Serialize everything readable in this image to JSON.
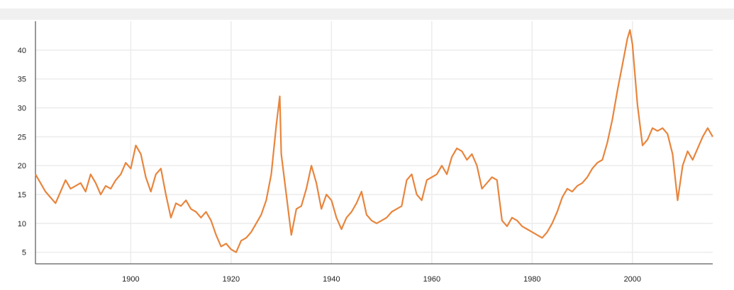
{
  "chart_data": {
    "type": "line",
    "title": "",
    "xlabel": "",
    "ylabel": "",
    "xlim": [
      1881,
      2016
    ],
    "ylim": [
      3,
      45
    ],
    "x_ticks": [
      1900,
      1920,
      1940,
      1960,
      1980,
      2000
    ],
    "y_ticks": [
      5,
      10,
      15,
      20,
      25,
      30,
      35,
      40
    ],
    "grid": true,
    "legend": "none",
    "color": "#e8853d",
    "series": [
      {
        "x": [
          1881,
          1882,
          1883,
          1884,
          1885,
          1886,
          1887,
          1888,
          1889,
          1890,
          1891,
          1892,
          1893,
          1894,
          1895,
          1896,
          1897,
          1898,
          1899,
          1900,
          1901,
          1902,
          1903,
          1904,
          1905,
          1906,
          1907,
          1908,
          1909,
          1910,
          1911,
          1912,
          1913,
          1914,
          1915,
          1916,
          1917,
          1918,
          1919,
          1920,
          1921,
          1922,
          1923,
          1924,
          1925,
          1926,
          1927,
          1928,
          1929,
          1929.7,
          1930,
          1931,
          1932,
          1933,
          1934,
          1935,
          1936,
          1937,
          1938,
          1939,
          1940,
          1941,
          1942,
          1943,
          1944,
          1945,
          1946,
          1947,
          1948,
          1949,
          1950,
          1951,
          1952,
          1953,
          1954,
          1955,
          1956,
          1957,
          1958,
          1959,
          1960,
          1961,
          1962,
          1963,
          1964,
          1965,
          1966,
          1967,
          1968,
          1969,
          1970,
          1971,
          1972,
          1973,
          1974,
          1975,
          1976,
          1977,
          1978,
          1979,
          1980,
          1981,
          1982,
          1983,
          1984,
          1985,
          1986,
          1987,
          1988,
          1989,
          1990,
          1991,
          1992,
          1993,
          1994,
          1995,
          1996,
          1997,
          1998,
          1999,
          1999.5,
          2000,
          2001,
          2002,
          2003,
          2004,
          2005,
          2006,
          2007,
          2008,
          2009,
          2010,
          2011,
          2012,
          2013,
          2014,
          2015,
          2016
        ],
        "values": [
          18.5,
          17.0,
          15.5,
          14.5,
          13.5,
          15.5,
          17.5,
          16.0,
          16.5,
          17.0,
          15.5,
          18.5,
          17.0,
          15.0,
          16.5,
          16.0,
          17.5,
          18.5,
          20.5,
          19.5,
          23.5,
          22.0,
          18.0,
          15.5,
          18.5,
          19.5,
          15.0,
          11.0,
          13.5,
          13.0,
          14.0,
          12.5,
          12.0,
          11.0,
          12.0,
          10.5,
          8.0,
          6.0,
          6.5,
          5.5,
          5.0,
          7.0,
          7.5,
          8.5,
          10.0,
          11.5,
          14.0,
          18.5,
          27.0,
          32.0,
          22.0,
          15.0,
          8.0,
          12.5,
          13.0,
          16.0,
          20.0,
          17.0,
          12.5,
          15.0,
          14.0,
          11.0,
          9.0,
          11.0,
          12.0,
          13.5,
          15.5,
          11.5,
          10.5,
          10.0,
          10.5,
          11.0,
          12.0,
          12.5,
          13.0,
          17.5,
          18.5,
          15.0,
          14.0,
          17.5,
          18.0,
          18.5,
          20.0,
          18.5,
          21.5,
          23.0,
          22.5,
          21.0,
          22.0,
          20.0,
          16.0,
          17.0,
          18.0,
          17.5,
          10.5,
          9.5,
          11.0,
          10.5,
          9.5,
          9.0,
          8.5,
          8.0,
          7.5,
          8.5,
          10.0,
          12.0,
          14.5,
          16.0,
          15.5,
          16.5,
          17.0,
          18.0,
          19.5,
          20.5,
          21.0,
          24.0,
          28.0,
          33.0,
          37.5,
          42.0,
          43.5,
          41.0,
          30.5,
          23.5,
          24.5,
          26.5,
          26.0,
          26.5,
          25.5,
          22.0,
          14.0,
          20.0,
          22.5,
          21.0,
          23.0,
          25.0,
          26.5,
          25.0
        ]
      }
    ]
  }
}
